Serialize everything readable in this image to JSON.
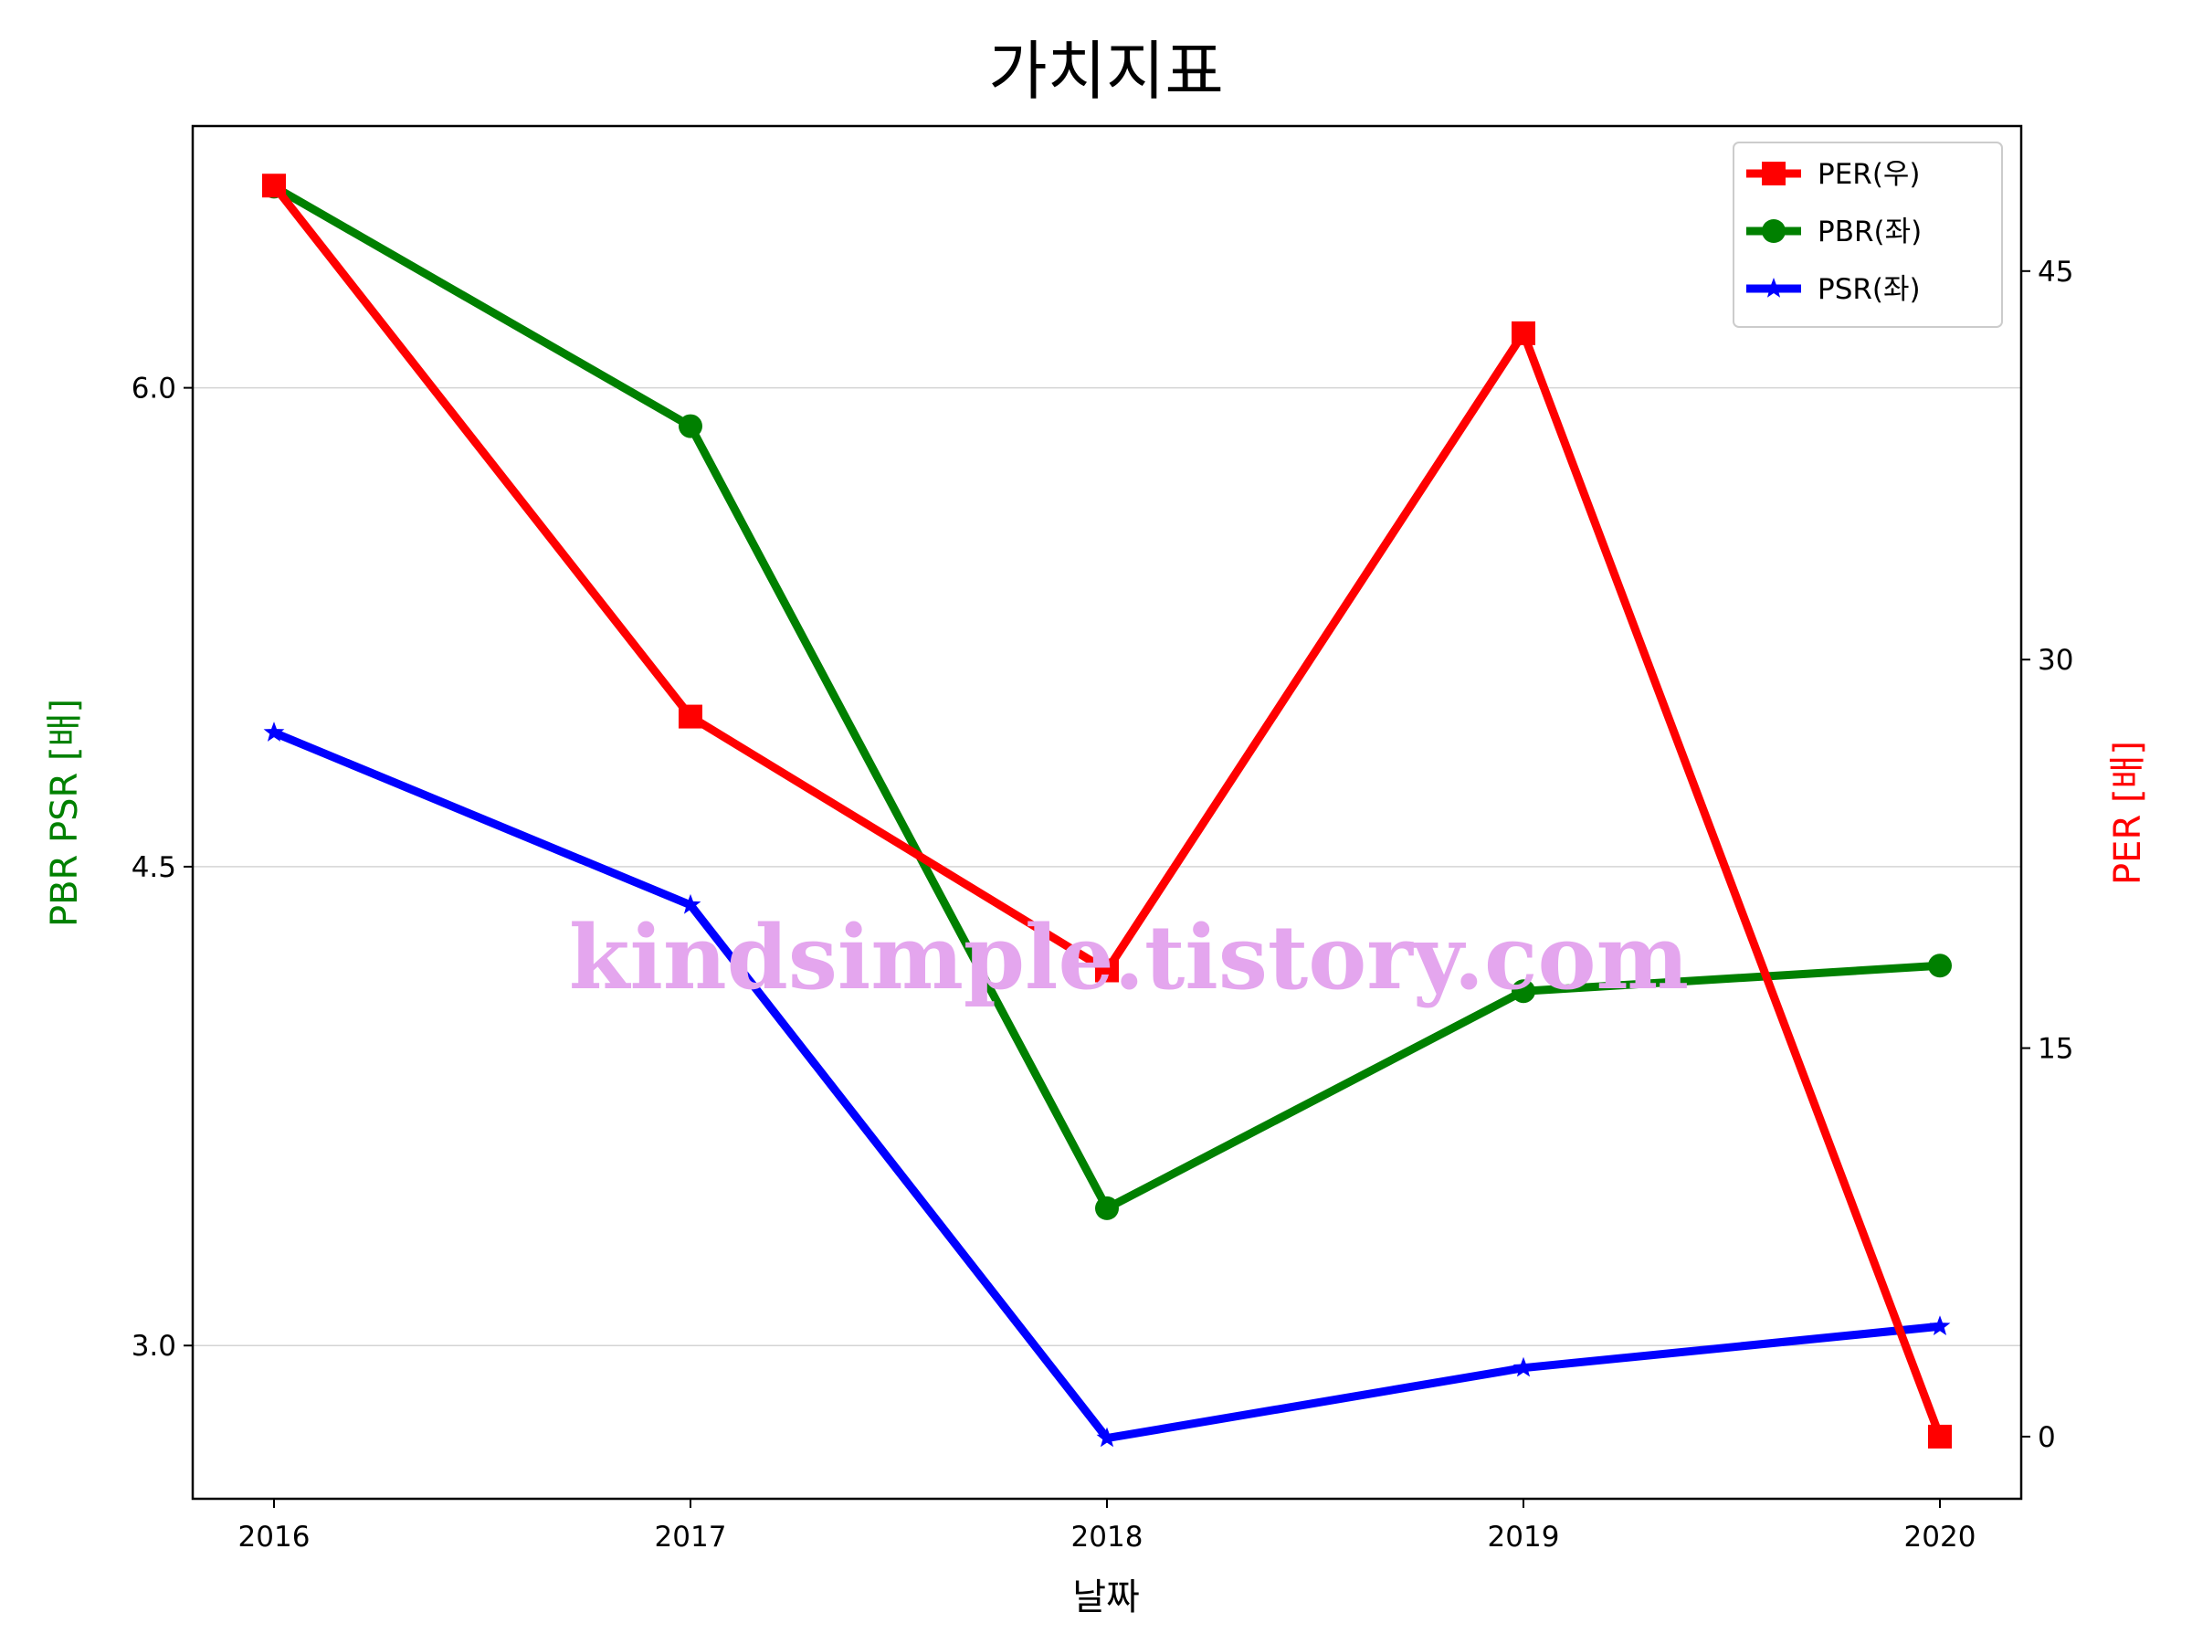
{
  "chart_data": {
    "type": "line",
    "title": "가치지표",
    "xlabel": "날짜",
    "ylabel_left": "PBR PSR [배]",
    "ylabel_right": "PER [배]",
    "categories": [
      "2016",
      "2017",
      "2018",
      "2019",
      "2020"
    ],
    "left_axis": {
      "ylim": [
        2.52,
        6.82
      ],
      "ticks": [
        "3.0",
        "4.5",
        "6.0"
      ],
      "tick_values": [
        3.0,
        4.5,
        6.0
      ]
    },
    "right_axis": {
      "ylim": [
        -2.4,
        50.6
      ],
      "ticks": [
        "0",
        "15",
        "30",
        "45"
      ],
      "tick_values": [
        0,
        15,
        30,
        45
      ]
    },
    "grid": "horizontal (left axis)",
    "legend_position": "top-right",
    "series": [
      {
        "name": "PER(우)",
        "axis": "right",
        "color": "#ff0000",
        "marker": "square",
        "values": [
          48.3,
          27.8,
          18.0,
          42.6,
          0.0
        ]
      },
      {
        "name": "PBR(좌)",
        "axis": "left",
        "color": "#008000",
        "marker": "circle",
        "values": [
          6.63,
          5.88,
          3.43,
          4.11,
          4.19
        ]
      },
      {
        "name": "PSR(좌)",
        "axis": "left",
        "color": "#0000ff",
        "marker": "star",
        "values": [
          4.92,
          4.38,
          2.71,
          2.93,
          3.06
        ]
      }
    ],
    "watermark": "kindsimple.tistory.com",
    "axis_label_colors": {
      "left": "#008000",
      "right": "#ff0000"
    }
  }
}
